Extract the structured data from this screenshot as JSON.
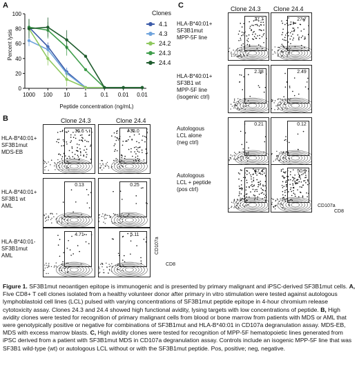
{
  "panelA": {
    "letter": "A",
    "ylabel": "Percent lysis",
    "xlabel": "Peptide concentration (ng/mL)",
    "legend_title": "Clones",
    "chart_data": {
      "type": "line",
      "categories": [
        "1000",
        "100",
        "10",
        "1",
        "0.1",
        "0.01",
        "0.01"
      ],
      "y_ticks": [
        "0",
        "20",
        "40",
        "60",
        "80",
        "100"
      ],
      "ylim": [
        0,
        100
      ],
      "xlabel": "Peptide concentration (ng/mL)",
      "ylabel": "Percent lysis",
      "series": [
        {
          "name": "4.1",
          "color": "#3b5ba8",
          "values": [
            82,
            56,
            22,
            1,
            1,
            1,
            1
          ]
        },
        {
          "name": "4.3",
          "color": "#6fa3dc",
          "values": [
            64,
            52,
            20,
            1,
            1,
            1,
            1
          ]
        },
        {
          "name": "24.2",
          "color": "#8fc95f",
          "values": [
            80,
            40,
            12,
            1,
            1,
            1,
            1
          ]
        },
        {
          "name": "24.3",
          "color": "#3f9e4b",
          "values": [
            82,
            78,
            55,
            25,
            1,
            1,
            1
          ]
        },
        {
          "name": "24.4",
          "color": "#1f5c2e",
          "values": [
            80,
            82,
            65,
            43,
            1,
            1,
            1
          ]
        }
      ]
    }
  },
  "panelB": {
    "letter": "B",
    "clones": [
      "Clone 24.3",
      "Clone 24.4"
    ],
    "rows": [
      {
        "label": [
          "HLA-B*40:01+",
          "SF3B1mut",
          "MDS-EB"
        ],
        "values": [
          "36.6",
          "35.0"
        ]
      },
      {
        "label": [
          "HLA-B*40:01+",
          "SF3B1 wt",
          "AML"
        ],
        "values": [
          "0.13",
          "0.25"
        ]
      },
      {
        "label": [
          "HLA-B*40:01-",
          "SF3B1mut",
          "AML"
        ],
        "values": [
          "4.71",
          "5.11"
        ]
      }
    ],
    "y_axis": "CD107a",
    "x_axis": "CD8"
  },
  "panelC": {
    "letter": "C",
    "clones": [
      "Clone 24.3",
      "Clone 24.4"
    ],
    "rows": [
      {
        "label": [
          "HLA-B*40:01+",
          "SF3B1mut",
          "MPP-5F line"
        ],
        "values": [
          "27.7",
          "27.7"
        ]
      },
      {
        "label": [
          "HLA-B*40:01+",
          "SF3B1 wt",
          "MPP-5F line",
          "(isogenic ctrl)"
        ],
        "values": [
          "2.38",
          "2.49"
        ]
      },
      {
        "label": [
          "Autologous",
          "LCL alone",
          "(neg ctrl)"
        ],
        "values": [
          "0.21",
          "0.12"
        ]
      },
      {
        "label": [
          "Autologous",
          "LCL + peptide",
          "(pos ctrl)"
        ],
        "values": [
          "47.4",
          "50.9"
        ]
      }
    ],
    "y_axis": "CD107a",
    "x_axis": "CD8"
  },
  "caption": {
    "figure_label": "Figure 1.",
    "title": "SF3B1mut neoantigen epitope is immunogenic and is presented by primary malignant and iPSC-derived SF3B1mut cells.",
    "part_a_label": "A,",
    "part_a": "Five CD8+ T cell clones isolated from a healthy volunteer donor after primary in vitro stimulation were tested against autologous lymphoblastoid cell lines (LCL) pulsed with varying concentrations of SF3B1mut peptide epitope in 4-hour chromium release cytotoxicity assay. Clones 24.3 and 24.4 showed high functional avidity, lysing targets with low concentrations of peptide.",
    "part_b_label": "B,",
    "part_b": "High avidity clones were tested for recognition of primary malignant cells from blood or bone marrow from patients with MDS or AML that were genotypically positive or negative for combinations of SF3B1mut and HLA-B*40:01 in CD107a degranulation assay. MDS-EB, MDS with excess marrow blasts.",
    "part_c_label": "C,",
    "part_c": "High avidity clones were tested for recognition of MPP-5F hematopoietic lines generated from iPSC derived from a patient with SF3B1mut MDS in CD107a degranulation assay. Controls include an isogenic MPP-5F line that was SF3B1 wild-type (wt) or autologous LCL without or with the SF3B1mut peptide. Pos, positive; neg, negative."
  }
}
